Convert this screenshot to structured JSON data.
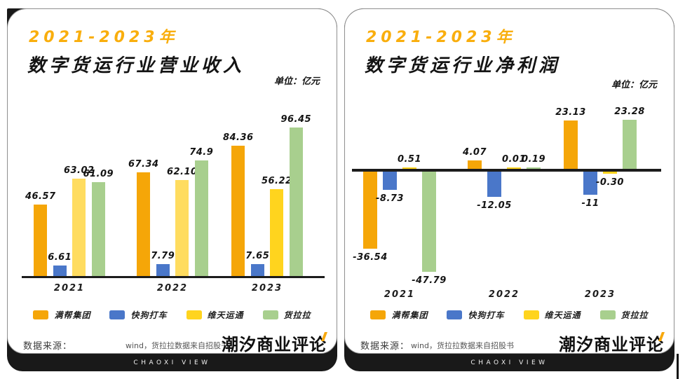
{
  "page": {
    "background": "#FFFFFF",
    "card_background": "#FFFFFF",
    "frame_color": "#191919"
  },
  "brand": {
    "accent_color": "#F7A80D"
  },
  "cards": [
    {
      "title_year": "2021-2023年",
      "title_main": "数字货运行业营业收入",
      "unit_label": "单位：亿元",
      "source_label": "数据来源：",
      "source_text": "wind，货拉拉数据来自招股书",
      "logo_text": "潮汐商业评论",
      "footer_text": "CHAOXI VIEW"
    },
    {
      "title_year": "2021-2023年",
      "title_main": "数字货运行业净利润",
      "unit_label": "单位：亿元",
      "source_label": "数据来源：",
      "source_text": "wind，货拉拉数据来自招股书",
      "logo_text": "潮汐商业评论",
      "footer_text": "CHAOXI VIEW"
    }
  ],
  "chart_data": [
    {
      "type": "bar",
      "title": "2021-2023年数字货运行业营业收入",
      "xlabel": "",
      "ylabel": "",
      "unit": "亿元",
      "ylim": [
        0,
        100
      ],
      "grid": false,
      "legend_position": "bottom",
      "categories": [
        "2021",
        "2022",
        "2023"
      ],
      "series": [
        {
          "name": "满帮集团",
          "color": "#F5A608",
          "values": [
            46.57,
            67.34,
            84.36
          ],
          "labels": [
            "46.57",
            "67.34",
            "84.36"
          ]
        },
        {
          "name": "快狗打车",
          "color": "#4A77C9",
          "values": [
            6.61,
            7.79,
            7.65
          ],
          "labels": [
            "6.61",
            "7.79",
            "7.65"
          ]
        },
        {
          "name": "维天运通",
          "color": "#FFD41E",
          "colors_by_category": [
            "#FFDC5F",
            "#FFDC5F",
            "#FFD41E"
          ],
          "values": [
            63.02,
            62.1,
            56.22
          ],
          "labels": [
            "63.02",
            "62.10",
            "56.22"
          ]
        },
        {
          "name": "货拉拉",
          "color": "#A8CF8E",
          "values": [
            61.09,
            74.9,
            96.45
          ],
          "labels": [
            "61.09",
            "74.9",
            "96.45"
          ]
        }
      ]
    },
    {
      "type": "bar",
      "title": "2021-2023年数字货运行业净利润",
      "xlabel": "",
      "ylabel": "",
      "unit": "亿元",
      "ylim": [
        -50,
        25
      ],
      "grid": false,
      "legend_position": "bottom",
      "categories": [
        "2021",
        "2022",
        "2023"
      ],
      "series": [
        {
          "name": "满帮集团",
          "color": "#F5A608",
          "values": [
            -36.54,
            4.07,
            23.13
          ],
          "labels": [
            "-36.54",
            "4.07",
            "23.13"
          ]
        },
        {
          "name": "快狗打车",
          "color": "#4A77C9",
          "values": [
            -8.73,
            -12.05,
            -11
          ],
          "labels": [
            "-8.73",
            "-12.05",
            "-11"
          ]
        },
        {
          "name": "维天运通",
          "color": "#FFD41E",
          "values": [
            0.51,
            0.01,
            -0.3
          ],
          "labels": [
            "0.51",
            "0.01",
            "-0.30"
          ]
        },
        {
          "name": "货拉拉",
          "color": "#A8CF8E",
          "values": [
            -47.79,
            0.19,
            23.28
          ],
          "labels": [
            "-47.79",
            "0.19",
            "23.28"
          ]
        }
      ]
    }
  ]
}
